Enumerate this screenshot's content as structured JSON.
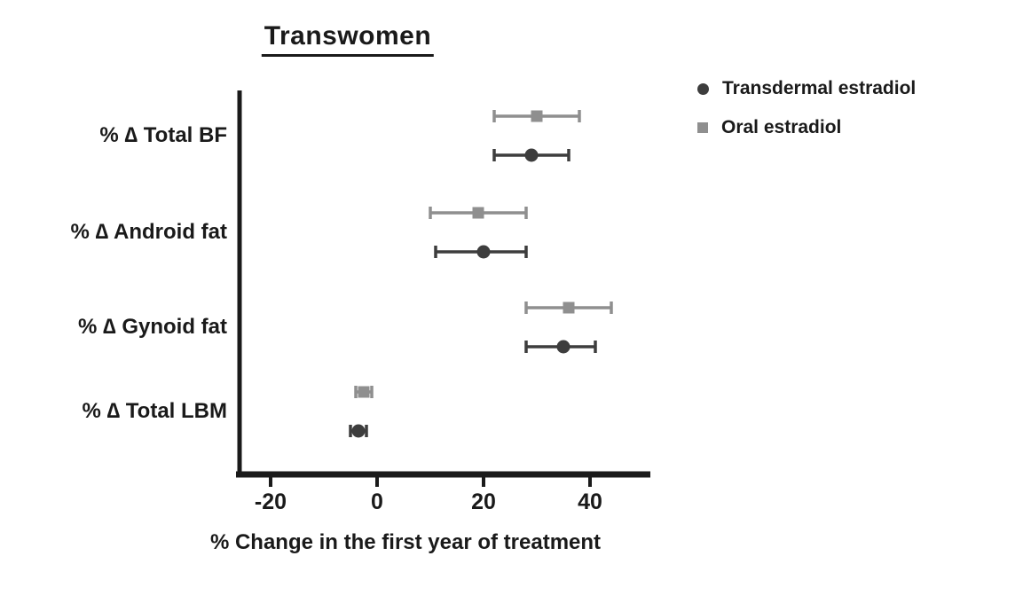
{
  "figure": {
    "background": "#ffffff",
    "axis_color": "#1a1a1a"
  },
  "chart_data": {
    "type": "scatter",
    "subtype": "horizontal-forest-plot-with-error-bars",
    "title": "Transwomen",
    "xlabel": "% Change in the first year of treatment",
    "categories": [
      "% ∆ Total BF",
      "% ∆ Android fat",
      "% ∆ Gynoid fat",
      "% ∆ Total LBM"
    ],
    "xticks": [
      -20,
      0,
      20,
      40
    ],
    "xlim": [
      -26,
      51
    ],
    "grid": false,
    "legend_position": "top-right",
    "series": [
      {
        "name": "Transdermal estradiol",
        "marker": "circle",
        "color": "#3d3d3d",
        "values": [
          29,
          20,
          35,
          -3.5
        ],
        "ci_low": [
          22,
          11,
          28,
          -5
        ],
        "ci_high": [
          36,
          28,
          41,
          -2
        ]
      },
      {
        "name": "Oral estradiol",
        "marker": "square",
        "color": "#8f8f8f",
        "values": [
          30,
          19,
          36,
          -2.5
        ],
        "ci_low": [
          22,
          10,
          28,
          -4
        ],
        "ci_high": [
          38,
          28,
          44,
          -1
        ]
      }
    ]
  }
}
